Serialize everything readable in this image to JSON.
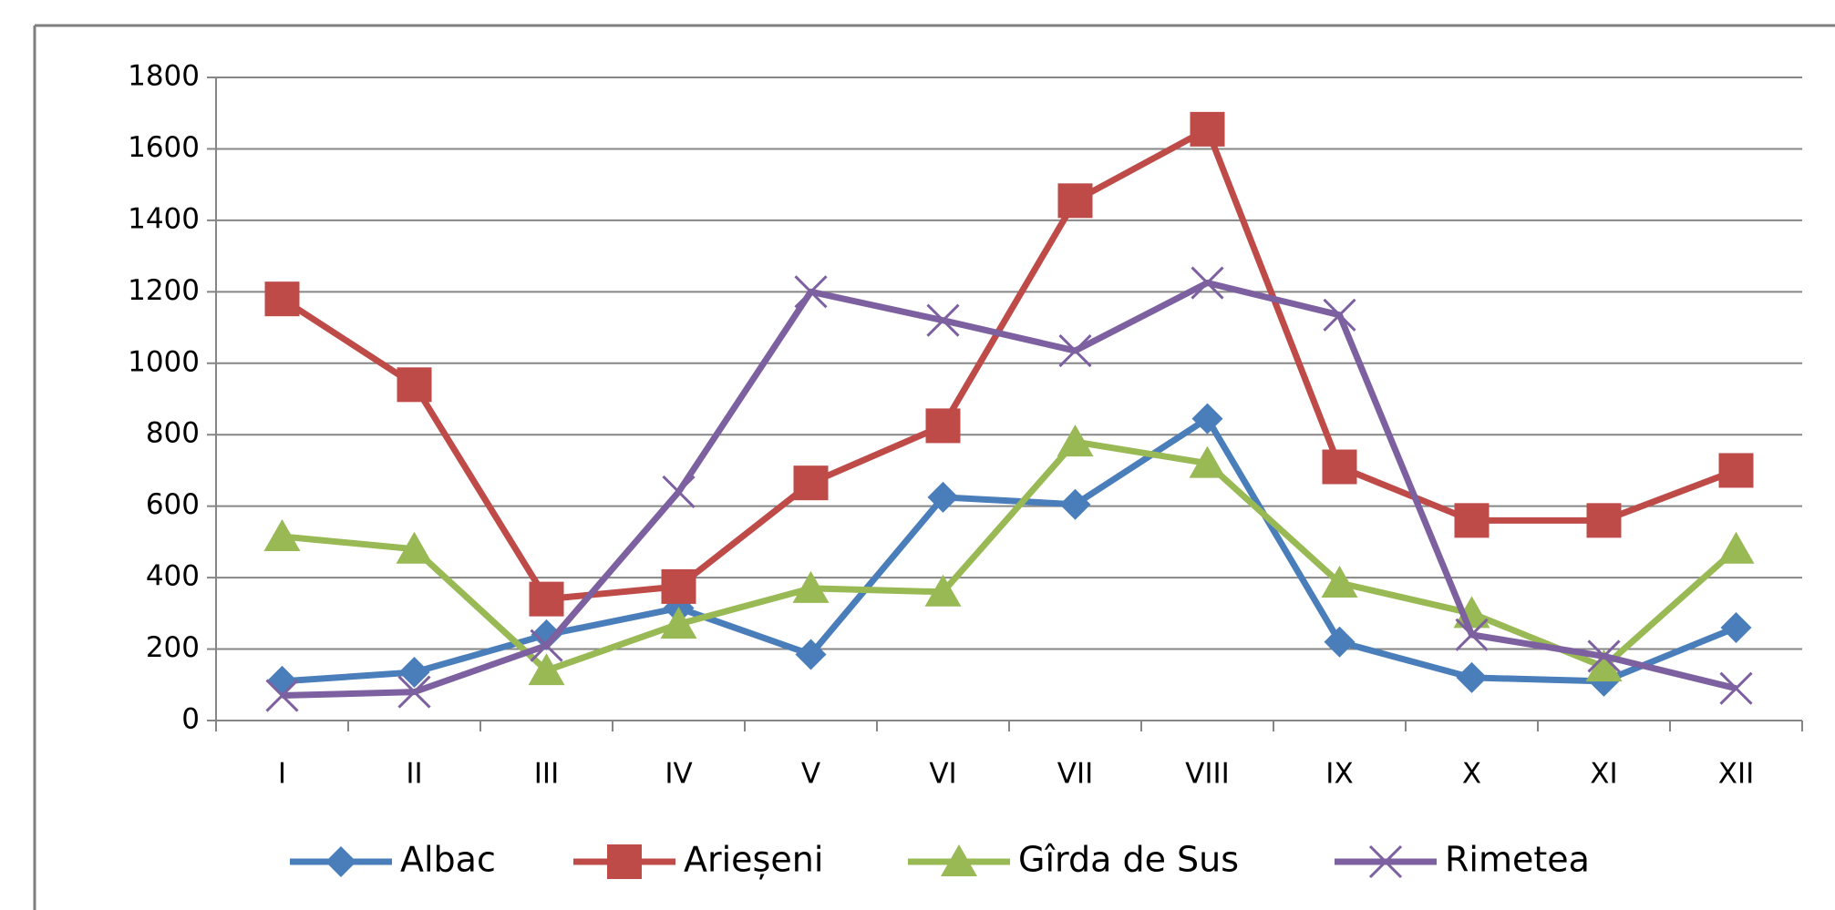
{
  "chart_data": {
    "type": "line",
    "categories": [
      "I",
      "II",
      "III",
      "IV",
      "V",
      "VI",
      "VII",
      "VIII",
      "IX",
      "X",
      "XI",
      "XII"
    ],
    "series": [
      {
        "name": "Albac",
        "color": "#4a7ebb",
        "marker": "diamond",
        "values": [
          110,
          135,
          240,
          315,
          185,
          625,
          605,
          845,
          220,
          120,
          110,
          260
        ]
      },
      {
        "name": "Arieșeni",
        "color": "#be4b48",
        "marker": "square",
        "values": [
          1180,
          940,
          340,
          375,
          665,
          825,
          1455,
          1655,
          710,
          560,
          560,
          700
        ]
      },
      {
        "name": "Gîrda de Sus",
        "color": "#98b954",
        "marker": "triangle",
        "values": [
          515,
          480,
          140,
          270,
          370,
          360,
          780,
          720,
          385,
          300,
          150,
          480
        ]
      },
      {
        "name": "Rimetea",
        "color": "#7d60a0",
        "marker": "x",
        "values": [
          70,
          80,
          210,
          640,
          1200,
          1120,
          1035,
          1225,
          1135,
          240,
          180,
          90
        ]
      }
    ],
    "ylim": [
      0,
      1800
    ],
    "yticks": [
      0,
      200,
      400,
      600,
      800,
      1000,
      1200,
      1400,
      1600,
      1800
    ],
    "grid": true,
    "legend": "bottom"
  }
}
